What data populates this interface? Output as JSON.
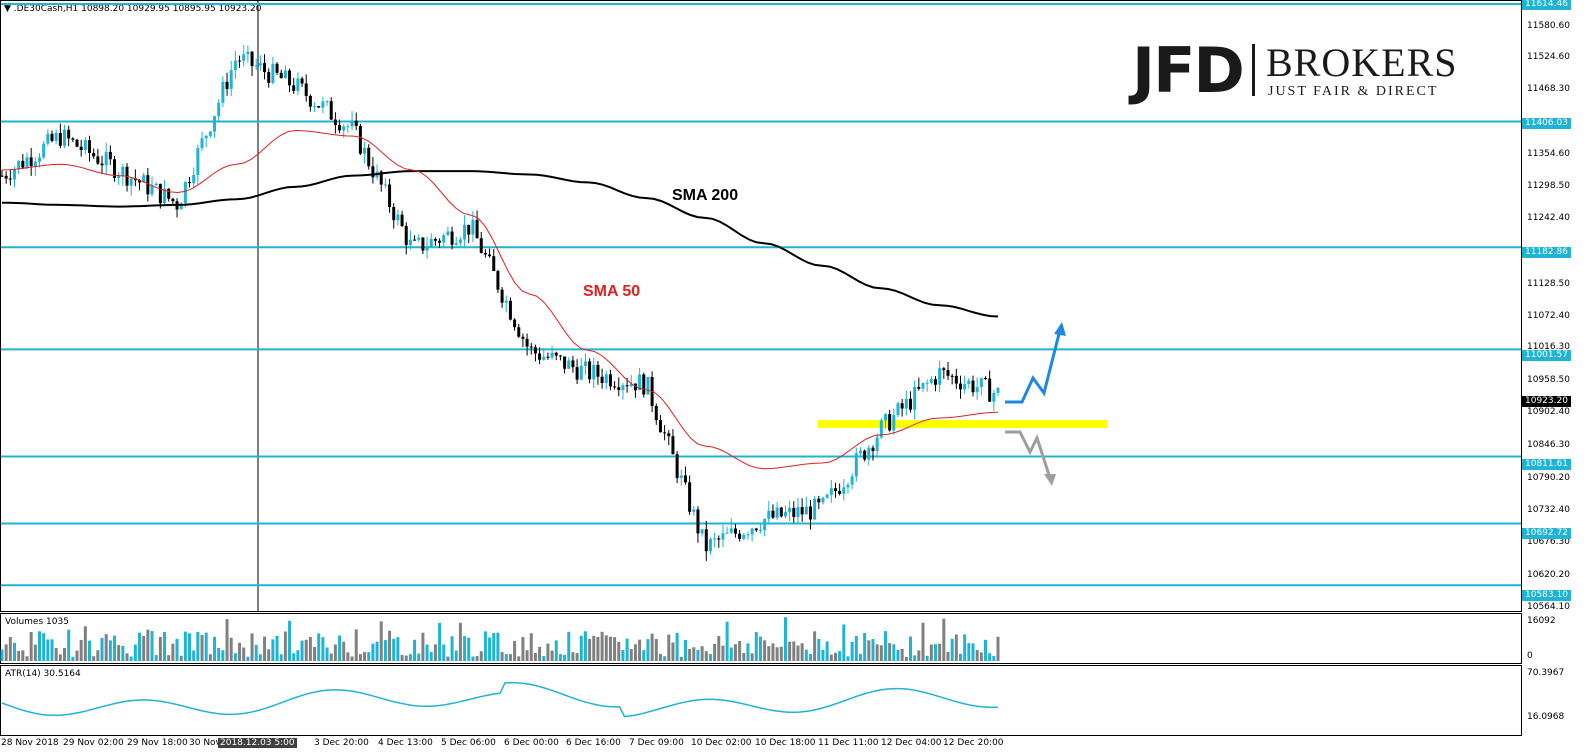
{
  "chart_header": {
    "symbol_line": "▼ .DE30Cash,H1  10898.20 10929.95 10895.95 10923.20"
  },
  "logo": {
    "jfd": "JFD",
    "brokers": "BROKERS",
    "tagline": "JUST FAIR & DIRECT"
  },
  "annotations": {
    "sma200": "SMA 200",
    "sma50": "SMA 50"
  },
  "price_axis": {
    "ticks": [
      "11580.60",
      "11524.60",
      "11468.30",
      "11354.60",
      "11298.50",
      "11242.40",
      "11128.50",
      "11072.40",
      "10958.50",
      "10902.40",
      "10846.30",
      "10790.20",
      "10732.40",
      "10676.30",
      "10620.20",
      "10564.10"
    ],
    "boxed_levels": [
      "11614.46",
      "11406.03",
      "11182.86",
      "11001.57",
      "10811.61",
      "10692.72",
      "10583.10"
    ],
    "current_price": "10923.20",
    "hidden_tick": "11016.30"
  },
  "volume_panel": {
    "label": "Volumes 1035",
    "max": "16092",
    "min": "0"
  },
  "atr_panel": {
    "label": "ATR(14) 30.5164",
    "max": "70.3967",
    "min": "16.0968"
  },
  "time_axis": {
    "labels": [
      "28 Nov 2018",
      "29 Nov 02:00",
      "29 Nov 18:00",
      "30 Nov",
      "2018.12.03 5:00",
      "3 Dec 20:00",
      "4 Dec 13:00",
      "5 Dec 06:00",
      "6 Dec 00:00",
      "6 Dec 16:00",
      "7 Dec 09:00",
      "10 Dec 02:00",
      "10 Dec 18:00",
      "11 Dec 11:00",
      "12 Dec 04:00",
      "12 Dec 20:00"
    ]
  },
  "colors": {
    "level_line": "#1fb3d6",
    "sma50": "#e02020",
    "sma200": "#000000",
    "support_band": "#ffff00",
    "bull_arrow": "#1e88e5",
    "bear_arrow": "#9e9e9e",
    "candle": "#1fb3d6"
  },
  "chart_data": {
    "type": "line",
    "title": ".DE30Cash,H1",
    "xlabel": "",
    "ylabel": "",
    "ylim": [
      10564.1,
      11614.46
    ],
    "horizontal_levels": [
      11614.46,
      11406.03,
      11182.86,
      11001.57,
      10811.61,
      10692.72,
      10583.1
    ],
    "series": [
      {
        "name": "SMA 200",
        "values": [
          11262,
          11258,
          11255,
          11258,
          11268,
          11290,
          11310,
          11318,
          11318,
          11312,
          11298,
          11270,
          11235,
          11190,
          11150,
          11110,
          11080,
          11060
        ]
      },
      {
        "name": "SMA 50",
        "values": [
          11320,
          11330,
          11310,
          11280,
          11330,
          11390,
          11380,
          11320,
          11240,
          11100,
          11000,
          10930,
          10830,
          10790,
          10800,
          10850,
          10880,
          10890
        ]
      },
      {
        "name": "Price",
        "values": [
          11310,
          11380,
          11320,
          11260,
          11520,
          11470,
          11390,
          11180,
          11220,
          11000,
          10960,
          10940,
          10650,
          10700,
          10720,
          10860,
          10960,
          10923
        ]
      }
    ]
  }
}
